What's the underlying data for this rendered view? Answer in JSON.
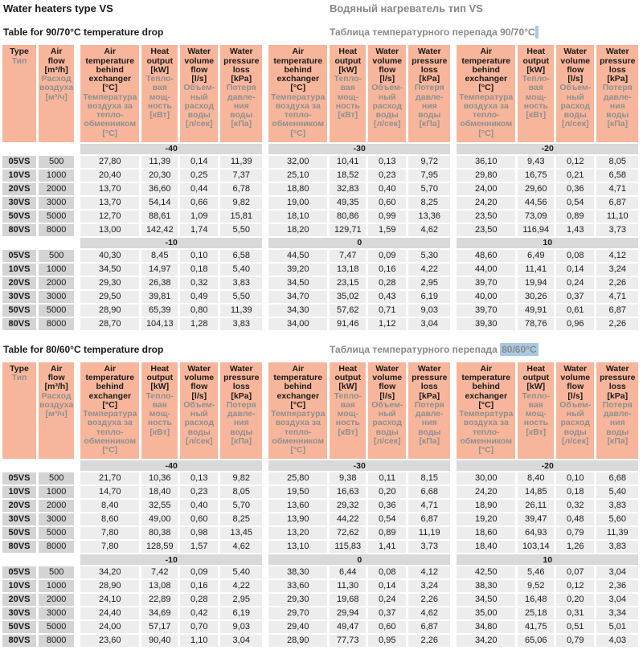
{
  "page": {
    "title_en": "Water heaters type VS",
    "title_ru": "Водяный нагреватель тип VS"
  },
  "colors": {
    "header_bg": "#f7b69b",
    "band_bg": "#d9d9d9",
    "label_cell_bg": "#d4d4d4",
    "value_cell_bg": "#ededed",
    "ru_text_gray": "#8f8f8f",
    "highlight_bg": "#a9c9e2"
  },
  "columns": {
    "type": {
      "en": "Type",
      "ru": "Тип"
    },
    "airflow": {
      "en": "Air\nflow\n[m³/h]",
      "ru": "Расход\nвоздуха\n[м³/ч]"
    },
    "group": [
      {
        "en": "Air\ntemperature\nbehind\nexchanger\n[°C]",
        "ru": "Температура\nвоздуха за\nтепло-\nобменником\n[°C]"
      },
      {
        "en": "Heat\noutput\n[kW]",
        "ru": "Тепло-\nвая\nмощ-\nность\n[кВт]"
      },
      {
        "en": "Water\nvolume\nflow\n[l/s]",
        "ru": "Объем-\nный\nрасход\nводы\n[л/сек]"
      },
      {
        "en": "Water\npressure\nloss\n[kPa]",
        "ru": "Потеря\nдавле-\nния\nводы\n[кПа]"
      }
    ]
  },
  "tables": [
    {
      "subtitle_en": "Table for 90/70°C temperature drop",
      "subtitle_ru_prefix": "Таблица температурного перепада 90/70°C",
      "subtitle_ru_highlight": "",
      "sections": [
        {
          "bands": [
            "-40",
            "-30",
            "-20"
          ],
          "rows": [
            [
              "05VS",
              "500",
              "27,80",
              "11,39",
              "0,14",
              "11,39",
              "32,00",
              "10,41",
              "0,13",
              "9,72",
              "36,10",
              "9,43",
              "0,12",
              "8,05"
            ],
            [
              "10VS",
              "1000",
              "20,40",
              "20,30",
              "0,25",
              "7,37",
              "25,10",
              "18,52",
              "0,23",
              "7,95",
              "29,80",
              "16,75",
              "0,21",
              "6,58"
            ],
            [
              "20VS",
              "2000",
              "13,70",
              "36,60",
              "0,44",
              "6,78",
              "18,80",
              "32,83",
              "0,40",
              "5,70",
              "24,00",
              "29,60",
              "0,36",
              "4,71"
            ],
            [
              "30VS",
              "3000",
              "13,70",
              "54,14",
              "0,66",
              "9,82",
              "19,00",
              "49,35",
              "0,60",
              "8,25",
              "24,20",
              "44,56",
              "0,54",
              "6,87"
            ],
            [
              "50VS",
              "5000",
              "12,70",
              "88,61",
              "1,09",
              "15,81",
              "18,10",
              "80,86",
              "0,99",
              "13,36",
              "23,50",
              "73,09",
              "0,89",
              "11,10"
            ],
            [
              "80VS",
              "8000",
              "13,00",
              "142,42",
              "1,74",
              "5,50",
              "18,20",
              "129,71",
              "1,59",
              "4,62",
              "23,50",
              "116,94",
              "1,43",
              "3,73"
            ]
          ]
        },
        {
          "bands": [
            "-10",
            "0",
            "10"
          ],
          "rows": [
            [
              "05VS",
              "500",
              "40,30",
              "8,45",
              "0,10",
              "6,58",
              "44,50",
              "7,47",
              "0,09",
              "5,30",
              "48,60",
              "6,49",
              "0,08",
              "4,12"
            ],
            [
              "10VS",
              "1000",
              "34,50",
              "14,97",
              "0,18",
              "5,40",
              "39,20",
              "13,18",
              "0,16",
              "4,22",
              "44,00",
              "11,41",
              "0,14",
              "3,24"
            ],
            [
              "20VS",
              "2000",
              "29,30",
              "26,38",
              "0,32",
              "3,83",
              "34,50",
              "23,15",
              "0,28",
              "2,95",
              "39,70",
              "19,94",
              "0,24",
              "2,26"
            ],
            [
              "30VS",
              "3000",
              "29,50",
              "39,81",
              "0,49",
              "5,50",
              "34,70",
              "35,02",
              "0,43",
              "6,19",
              "40,00",
              "30,26",
              "0,37",
              "4,71"
            ],
            [
              "50VS",
              "5000",
              "28,90",
              "65,39",
              "0,80",
              "11,39",
              "34,30",
              "57,62",
              "0,71",
              "9,03",
              "39,70",
              "49,91",
              "0,61",
              "6,87"
            ],
            [
              "80VS",
              "8000",
              "28,70",
              "104,13",
              "1,28",
              "3,83",
              "34,00",
              "91,46",
              "1,12",
              "3,04",
              "39,30",
              "78,76",
              "0,96",
              "2,26"
            ]
          ]
        }
      ]
    },
    {
      "subtitle_en": "Table for 80/60°C temperature drop",
      "subtitle_ru_prefix": "Таблица температурного перепада ",
      "subtitle_ru_highlight": "80/60°C",
      "sections": [
        {
          "bands": [
            "-40",
            "-30",
            "-20"
          ],
          "rows": [
            [
              "05VS",
              "500",
              "21,70",
              "10,36",
              "0,13",
              "9,82",
              "25,80",
              "9,38",
              "0,11",
              "8,15",
              "30,00",
              "8,40",
              "0,10",
              "6,68"
            ],
            [
              "10VS",
              "1000",
              "14,70",
              "18,40",
              "0,23",
              "8,05",
              "19,50",
              "16,63",
              "0,20",
              "6,68",
              "24,20",
              "14,85",
              "0,18",
              "5,40"
            ],
            [
              "20VS",
              "2000",
              "8,40",
              "32,55",
              "0,40",
              "5,70",
              "13,60",
              "29,32",
              "0,36",
              "4,71",
              "18,90",
              "26,11",
              "0,32",
              "3,83"
            ],
            [
              "30VS",
              "3000",
              "8,60",
              "49,00",
              "0,60",
              "8,25",
              "13,90",
              "44,22",
              "0,54",
              "6,87",
              "19,20",
              "39,47",
              "0,48",
              "5,60"
            ],
            [
              "50VS",
              "5000",
              "7,80",
              "80,38",
              "0,98",
              "13,45",
              "13,20",
              "72,62",
              "0,89",
              "11,19",
              "18,60",
              "64,93",
              "0,79",
              "11,39"
            ],
            [
              "80VS",
              "8000",
              "7,80",
              "128,59",
              "1,57",
              "4,62",
              "13,10",
              "115,83",
              "1,41",
              "3,73",
              "18,40",
              "103,14",
              "1,26",
              "3,83"
            ]
          ]
        },
        {
          "bands": [
            "-10",
            "0",
            "10"
          ],
          "rows": [
            [
              "05VS",
              "500",
              "34,20",
              "7,42",
              "0,09",
              "5,40",
              "38,30",
              "6,44",
              "0,08",
              "4,12",
              "42,50",
              "5,46",
              "0,07",
              "3,04"
            ],
            [
              "10VS",
              "1000",
              "28,90",
              "13,08",
              "0,16",
              "4,22",
              "33,60",
              "11,30",
              "0,14",
              "3,24",
              "38,30",
              "9,52",
              "0,12",
              "2,36"
            ],
            [
              "20VS",
              "2000",
              "24,10",
              "22,89",
              "0,28",
              "2,95",
              "29,30",
              "19,68",
              "0,24",
              "2,26",
              "34,50",
              "16,48",
              "0,20",
              "3,04"
            ],
            [
              "30VS",
              "3000",
              "24,40",
              "34,69",
              "0,42",
              "6,19",
              "29,70",
              "29,94",
              "0,37",
              "4,62",
              "35,00",
              "25,18",
              "0,31",
              "3,34"
            ],
            [
              "50VS",
              "5000",
              "24,00",
              "57,17",
              "0,70",
              "9,03",
              "29,40",
              "49,47",
              "0,60",
              "6,87",
              "34,80",
              "41,75",
              "0,51",
              "5,01"
            ],
            [
              "80VS",
              "8000",
              "23,60",
              "90,40",
              "1,10",
              "3,04",
              "28,90",
              "77,73",
              "0,95",
              "2,26",
              "34,20",
              "65,06",
              "0,79",
              "4,03"
            ]
          ]
        }
      ]
    }
  ]
}
